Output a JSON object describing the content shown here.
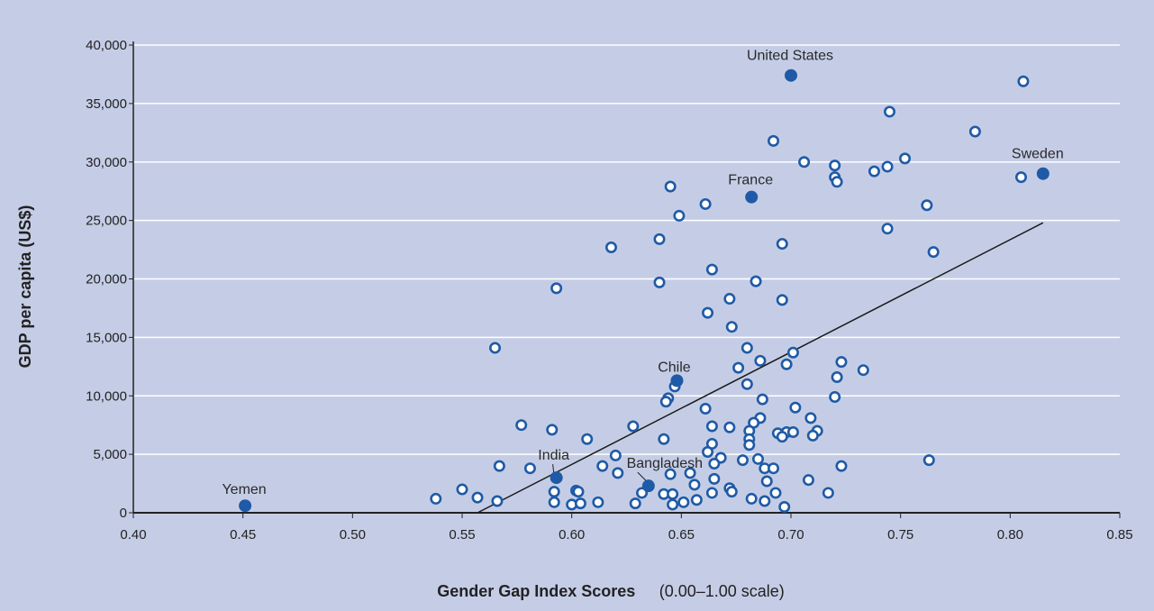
{
  "colors": {
    "background": "#c5cde6",
    "point_fill": "#1f5aa6",
    "point_ring": "#1f5aa6",
    "gridline": "#ffffff",
    "trend": "#1a1a1a"
  },
  "chart_data": {
    "type": "scatter",
    "title": "",
    "xlabel": "Gender Gap Index Scores",
    "xlabel_note": "(0.00–1.00 scale)",
    "ylabel": "GDP per capita (US$)",
    "xlim": [
      0.4,
      0.85
    ],
    "ylim": [
      0,
      40000
    ],
    "x_ticks": [
      "0.40",
      "0.45",
      "0.50",
      "0.55",
      "0.60",
      "0.65",
      "0.70",
      "0.75",
      "0.80",
      "0.85"
    ],
    "x_tick_values": [
      0.4,
      0.45,
      0.5,
      0.55,
      0.6,
      0.65,
      0.7,
      0.75,
      0.8,
      0.85
    ],
    "y_ticks": [
      "0",
      "5,000",
      "10,000",
      "15,000",
      "20,000",
      "25,000",
      "30,000",
      "35,000",
      "40,000"
    ],
    "y_tick_values": [
      0,
      5000,
      10000,
      15000,
      20000,
      25000,
      30000,
      35000,
      40000
    ],
    "grid": "horizontal",
    "trend_line": {
      "x": [
        0.557,
        0.815
      ],
      "y": [
        0,
        24800
      ]
    },
    "highlighted": [
      {
        "label": "United States",
        "x": 0.7,
        "y": 37400
      },
      {
        "label": "Sweden",
        "x": 0.815,
        "y": 29000
      },
      {
        "label": "France",
        "x": 0.682,
        "y": 27000
      },
      {
        "label": "Chile",
        "x": 0.648,
        "y": 11300
      },
      {
        "label": "India",
        "x": 0.593,
        "y": 3000
      },
      {
        "label": "Bangladesh",
        "x": 0.635,
        "y": 2300
      },
      {
        "label": "Yemen",
        "x": 0.451,
        "y": 600
      }
    ],
    "points": [
      {
        "x": 0.806,
        "y": 36900
      },
      {
        "x": 0.745,
        "y": 34300
      },
      {
        "x": 0.784,
        "y": 32600
      },
      {
        "x": 0.692,
        "y": 31800
      },
      {
        "x": 0.706,
        "y": 30000
      },
      {
        "x": 0.72,
        "y": 29700
      },
      {
        "x": 0.752,
        "y": 30300
      },
      {
        "x": 0.738,
        "y": 29200
      },
      {
        "x": 0.744,
        "y": 29600
      },
      {
        "x": 0.72,
        "y": 28700
      },
      {
        "x": 0.721,
        "y": 28300
      },
      {
        "x": 0.805,
        "y": 28700
      },
      {
        "x": 0.645,
        "y": 27900
      },
      {
        "x": 0.661,
        "y": 26400
      },
      {
        "x": 0.649,
        "y": 25400
      },
      {
        "x": 0.762,
        "y": 26300
      },
      {
        "x": 0.744,
        "y": 24300
      },
      {
        "x": 0.64,
        "y": 23400
      },
      {
        "x": 0.618,
        "y": 22700
      },
      {
        "x": 0.696,
        "y": 23000
      },
      {
        "x": 0.765,
        "y": 22300
      },
      {
        "x": 0.664,
        "y": 20800
      },
      {
        "x": 0.64,
        "y": 19700
      },
      {
        "x": 0.593,
        "y": 19200
      },
      {
        "x": 0.684,
        "y": 19800
      },
      {
        "x": 0.672,
        "y": 18300
      },
      {
        "x": 0.696,
        "y": 18200
      },
      {
        "x": 0.662,
        "y": 17100
      },
      {
        "x": 0.673,
        "y": 15900
      },
      {
        "x": 0.565,
        "y": 14100
      },
      {
        "x": 0.68,
        "y": 14100
      },
      {
        "x": 0.701,
        "y": 13700
      },
      {
        "x": 0.686,
        "y": 13000
      },
      {
        "x": 0.698,
        "y": 12700
      },
      {
        "x": 0.676,
        "y": 12400
      },
      {
        "x": 0.723,
        "y": 12900
      },
      {
        "x": 0.733,
        "y": 12200
      },
      {
        "x": 0.721,
        "y": 11600
      },
      {
        "x": 0.68,
        "y": 11000
      },
      {
        "x": 0.647,
        "y": 10800
      },
      {
        "x": 0.644,
        "y": 9800
      },
      {
        "x": 0.643,
        "y": 9500
      },
      {
        "x": 0.687,
        "y": 9700
      },
      {
        "x": 0.72,
        "y": 9900
      },
      {
        "x": 0.661,
        "y": 8900
      },
      {
        "x": 0.702,
        "y": 9000
      },
      {
        "x": 0.686,
        "y": 8100
      },
      {
        "x": 0.709,
        "y": 8100
      },
      {
        "x": 0.683,
        "y": 7700
      },
      {
        "x": 0.664,
        "y": 7400
      },
      {
        "x": 0.672,
        "y": 7300
      },
      {
        "x": 0.628,
        "y": 7400
      },
      {
        "x": 0.577,
        "y": 7500
      },
      {
        "x": 0.591,
        "y": 7100
      },
      {
        "x": 0.681,
        "y": 7000
      },
      {
        "x": 0.698,
        "y": 6900
      },
      {
        "x": 0.701,
        "y": 6900
      },
      {
        "x": 0.712,
        "y": 7000
      },
      {
        "x": 0.694,
        "y": 6800
      },
      {
        "x": 0.681,
        "y": 6300
      },
      {
        "x": 0.696,
        "y": 6500
      },
      {
        "x": 0.71,
        "y": 6600
      },
      {
        "x": 0.607,
        "y": 6300
      },
      {
        "x": 0.642,
        "y": 6300
      },
      {
        "x": 0.681,
        "y": 5800
      },
      {
        "x": 0.664,
        "y": 5900
      },
      {
        "x": 0.662,
        "y": 5200
      },
      {
        "x": 0.62,
        "y": 4900
      },
      {
        "x": 0.668,
        "y": 4700
      },
      {
        "x": 0.685,
        "y": 4600
      },
      {
        "x": 0.763,
        "y": 4500
      },
      {
        "x": 0.678,
        "y": 4500
      },
      {
        "x": 0.665,
        "y": 4200
      },
      {
        "x": 0.567,
        "y": 4000
      },
      {
        "x": 0.581,
        "y": 3800
      },
      {
        "x": 0.614,
        "y": 4000
      },
      {
        "x": 0.688,
        "y": 3800
      },
      {
        "x": 0.692,
        "y": 3800
      },
      {
        "x": 0.723,
        "y": 4000
      },
      {
        "x": 0.621,
        "y": 3400
      },
      {
        "x": 0.654,
        "y": 3400
      },
      {
        "x": 0.645,
        "y": 3300
      },
      {
        "x": 0.665,
        "y": 2900
      },
      {
        "x": 0.708,
        "y": 2800
      },
      {
        "x": 0.689,
        "y": 2700
      },
      {
        "x": 0.656,
        "y": 2400
      },
      {
        "x": 0.672,
        "y": 2100
      },
      {
        "x": 0.55,
        "y": 2000
      },
      {
        "x": 0.592,
        "y": 1800
      },
      {
        "x": 0.602,
        "y": 1900
      },
      {
        "x": 0.603,
        "y": 1800
      },
      {
        "x": 0.632,
        "y": 1700
      },
      {
        "x": 0.642,
        "y": 1600
      },
      {
        "x": 0.646,
        "y": 1600
      },
      {
        "x": 0.664,
        "y": 1700
      },
      {
        "x": 0.673,
        "y": 1800
      },
      {
        "x": 0.693,
        "y": 1700
      },
      {
        "x": 0.717,
        "y": 1700
      },
      {
        "x": 0.538,
        "y": 1200
      },
      {
        "x": 0.557,
        "y": 1300
      },
      {
        "x": 0.566,
        "y": 1000
      },
      {
        "x": 0.592,
        "y": 900
      },
      {
        "x": 0.6,
        "y": 700
      },
      {
        "x": 0.604,
        "y": 800
      },
      {
        "x": 0.612,
        "y": 900
      },
      {
        "x": 0.629,
        "y": 800
      },
      {
        "x": 0.646,
        "y": 700
      },
      {
        "x": 0.651,
        "y": 900
      },
      {
        "x": 0.657,
        "y": 1100
      },
      {
        "x": 0.682,
        "y": 1200
      },
      {
        "x": 0.688,
        "y": 1000
      },
      {
        "x": 0.697,
        "y": 500
      }
    ]
  }
}
